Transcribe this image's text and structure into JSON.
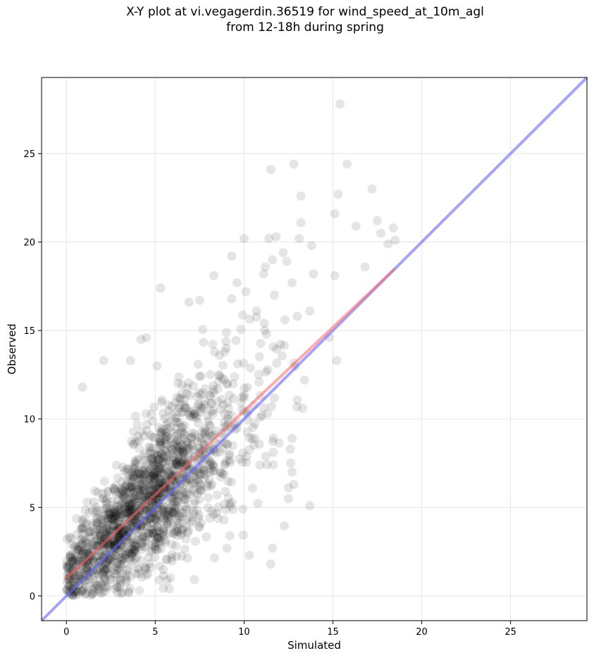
{
  "chart_data": {
    "type": "scatter",
    "title_lines": [
      "X-Y plot at vi.vegagerdin.36519 for wind_speed_at_10m_agl",
      "from 12-18h during spring"
    ],
    "xlabel": "Simulated",
    "ylabel": "Observed",
    "xlim": [
      -1.4,
      29.3
    ],
    "ylim": [
      -1.4,
      29.3
    ],
    "xticks": [
      0,
      5,
      10,
      15,
      20,
      25
    ],
    "yticks": [
      0,
      5,
      10,
      15,
      20,
      25
    ],
    "grid": true,
    "point_color": "#000000",
    "point_alpha": 0.1,
    "identity_line": {
      "color": "#6666ff",
      "from": [
        -1.4,
        -1.4
      ],
      "to": [
        29.3,
        29.3
      ]
    },
    "fit_line": {
      "color": "#ff6666",
      "from": [
        0,
        1.0
      ],
      "to": [
        18.5,
        18.5
      ]
    },
    "outlier_points": [
      {
        "x": 15.4,
        "y": 27.8
      },
      {
        "x": 11.5,
        "y": 24.1
      },
      {
        "x": 12.8,
        "y": 24.4
      },
      {
        "x": 15.8,
        "y": 24.4
      },
      {
        "x": 13.2,
        "y": 22.6
      },
      {
        "x": 15.3,
        "y": 22.7
      },
      {
        "x": 17.2,
        "y": 23.0
      },
      {
        "x": 15.1,
        "y": 21.6
      },
      {
        "x": 13.2,
        "y": 21.1
      },
      {
        "x": 16.3,
        "y": 20.9
      },
      {
        "x": 17.5,
        "y": 21.2
      },
      {
        "x": 17.7,
        "y": 20.5
      },
      {
        "x": 18.4,
        "y": 20.8
      },
      {
        "x": 18.1,
        "y": 19.9
      },
      {
        "x": 18.5,
        "y": 20.1
      },
      {
        "x": 16.8,
        "y": 18.6
      },
      {
        "x": 13.8,
        "y": 19.8
      },
      {
        "x": 13.1,
        "y": 20.2
      },
      {
        "x": 12.2,
        "y": 19.4
      },
      {
        "x": 11.4,
        "y": 20.2
      },
      {
        "x": 11.8,
        "y": 20.3
      },
      {
        "x": 11.6,
        "y": 19.0
      },
      {
        "x": 12.4,
        "y": 18.9
      },
      {
        "x": 11.2,
        "y": 18.6
      },
      {
        "x": 10.0,
        "y": 20.2
      },
      {
        "x": 9.3,
        "y": 19.2
      },
      {
        "x": 8.3,
        "y": 18.1
      },
      {
        "x": 11.1,
        "y": 18.2
      },
      {
        "x": 13.9,
        "y": 18.2
      },
      {
        "x": 15.1,
        "y": 18.1
      },
      {
        "x": 12.7,
        "y": 17.7
      },
      {
        "x": 11.7,
        "y": 17.0
      },
      {
        "x": 9.6,
        "y": 17.7
      },
      {
        "x": 10.1,
        "y": 17.2
      },
      {
        "x": 5.3,
        "y": 17.4
      },
      {
        "x": 6.9,
        "y": 16.6
      },
      {
        "x": 7.5,
        "y": 16.7
      },
      {
        "x": 9.3,
        "y": 16.8
      },
      {
        "x": 10.7,
        "y": 16.1
      },
      {
        "x": 12.3,
        "y": 15.6
      },
      {
        "x": 13.0,
        "y": 15.8
      },
      {
        "x": 13.7,
        "y": 16.1
      },
      {
        "x": 15.2,
        "y": 13.3
      },
      {
        "x": 14.8,
        "y": 14.6
      },
      {
        "x": 13.3,
        "y": 10.6
      },
      {
        "x": 13.7,
        "y": 5.1
      },
      {
        "x": 13.4,
        "y": 12.2
      },
      {
        "x": 11.5,
        "y": 1.8
      },
      {
        "x": 11.6,
        "y": 2.7
      },
      {
        "x": 10.3,
        "y": 2.3
      },
      {
        "x": 9.2,
        "y": 3.4
      },
      {
        "x": 0.9,
        "y": 11.8
      },
      {
        "x": 2.1,
        "y": 13.3
      },
      {
        "x": 3.6,
        "y": 13.3
      },
      {
        "x": 4.2,
        "y": 14.5
      },
      {
        "x": 4.5,
        "y": 14.6
      },
      {
        "x": 5.1,
        "y": 13.0
      },
      {
        "x": 12.5,
        "y": 6.1
      },
      {
        "x": 12.8,
        "y": 6.3
      },
      {
        "x": 12.7,
        "y": 7.0
      },
      {
        "x": 12.6,
        "y": 8.3
      },
      {
        "x": 12.7,
        "y": 8.9
      },
      {
        "x": 12.5,
        "y": 5.5
      }
    ],
    "cluster": {
      "n": 1700,
      "x_min": 0.0,
      "x_max": 13.0,
      "y_min": 0.0,
      "y_max": 16.0,
      "mean_x": 4.6,
      "sd_x": 2.9,
      "slope": 0.94,
      "intercept": 1.0,
      "sd_y": 1.9
    }
  }
}
